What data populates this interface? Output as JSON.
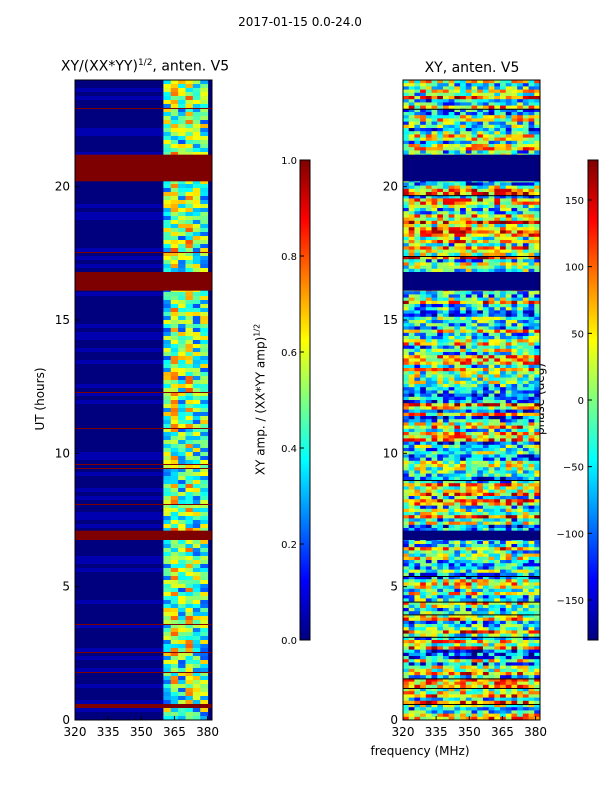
{
  "figure": {
    "suptitle": "2017-01-15 0.0-24.0",
    "xlabel": "frequency (MHz)"
  },
  "chart_data": [
    {
      "type": "heatmap",
      "title_main": "XY/(XX*YY)",
      "title_exp": "1/2",
      "title_suffix": ", anten. V5",
      "xlabel": "",
      "ylabel": "UT (hours)",
      "xlim": [
        320,
        382
      ],
      "ylim": [
        0,
        24
      ],
      "xticks": [
        320,
        335,
        350,
        365,
        380
      ],
      "yticks": [
        0,
        5,
        10,
        15,
        20
      ],
      "colorbar": {
        "label_main": "XY amp. / (XX*YY amp)",
        "label_exp": "1/2",
        "range": [
          0.0,
          1.0
        ],
        "ticks": [
          "0.0",
          "0.2",
          "0.4",
          "0.6",
          "0.8",
          "1.0"
        ],
        "colormap": "jet"
      },
      "saturated_bands_hours": [
        [
          20.2,
          21.2
        ],
        [
          16.1,
          16.8
        ],
        [
          6.75,
          7.1
        ],
        [
          0.45,
          0.6
        ]
      ],
      "active_frequency_band_mhz": [
        360,
        380
      ]
    },
    {
      "type": "heatmap",
      "title": "XY, anten. V5",
      "xlabel": "frequency (MHz)",
      "ylabel": "",
      "xlim": [
        320,
        382
      ],
      "ylim": [
        0,
        24
      ],
      "xticks": [
        320,
        335,
        350,
        365,
        380
      ],
      "yticks": [
        0,
        5,
        10,
        15,
        20
      ],
      "colorbar": {
        "label": "phase (deg)",
        "range": [
          -180,
          180
        ],
        "ticks": [
          "−150",
          "−100",
          "−50",
          "0",
          "50",
          "100",
          "150"
        ],
        "colormap": "jet"
      },
      "empty_bands_hours": [
        [
          20.2,
          21.2
        ],
        [
          16.1,
          16.8
        ],
        [
          6.75,
          7.1
        ]
      ]
    }
  ]
}
